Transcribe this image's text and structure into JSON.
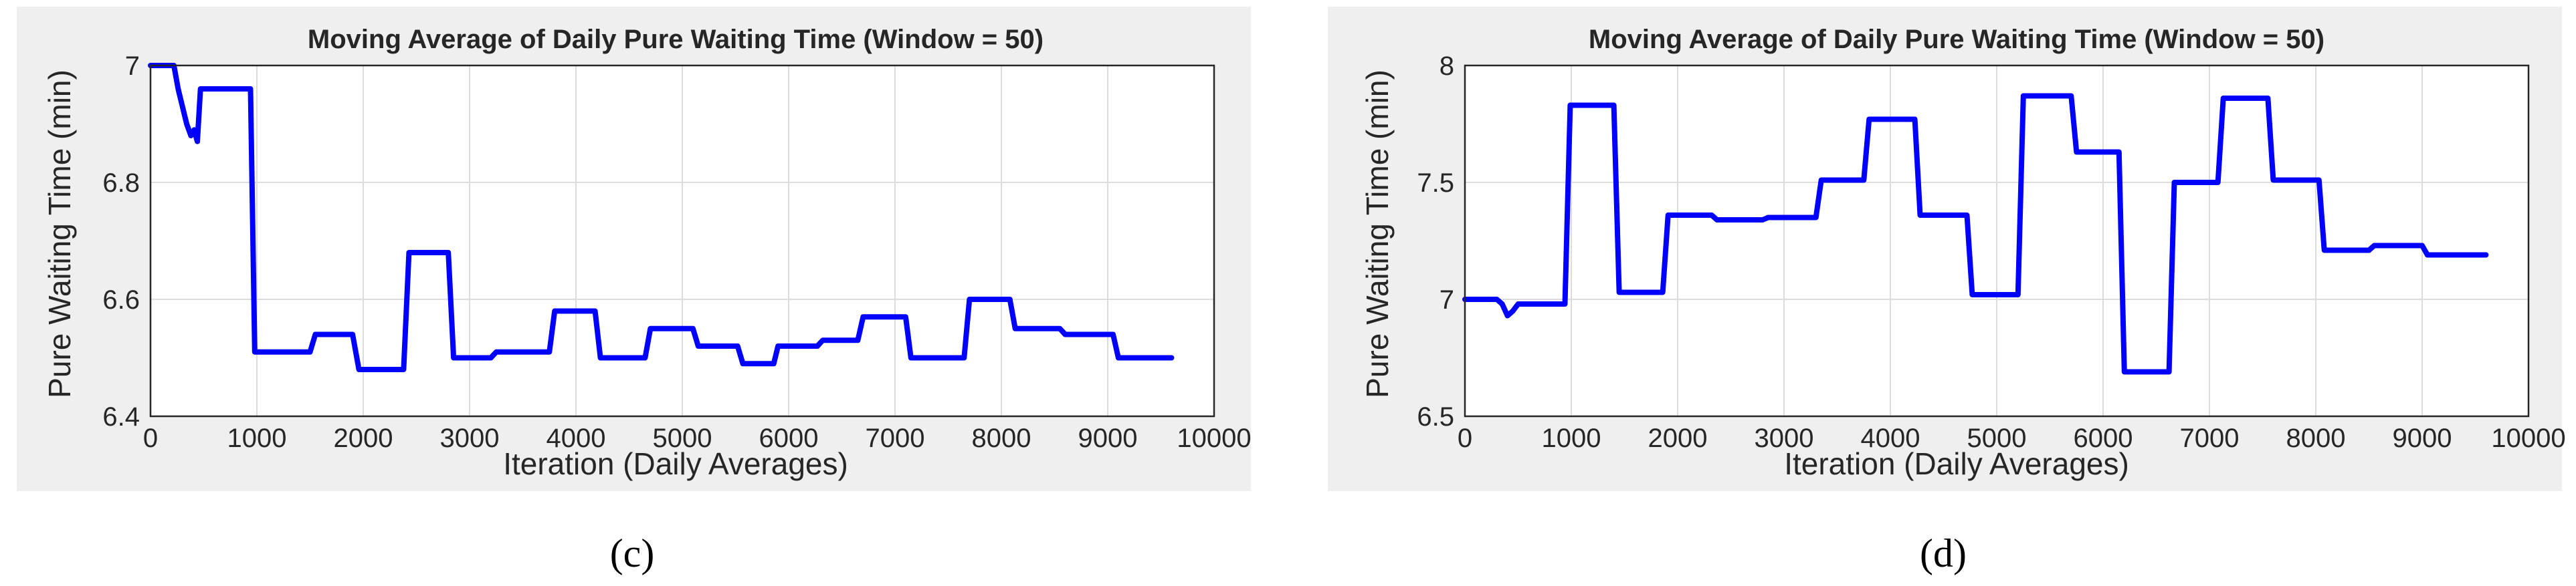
{
  "figure": {
    "panel_labels": [
      "(c)",
      "(d)"
    ]
  },
  "chart_data": [
    {
      "type": "line",
      "title": "Moving Average of Daily Pure Waiting Time (Window = 50)",
      "xlabel": "Iteration (Daily Averages)",
      "ylabel": "Pure Waiting Time (min)",
      "xlim": [
        0,
        10000
      ],
      "ylim": [
        6.4,
        7.0
      ],
      "xticks": [
        0,
        1000,
        2000,
        3000,
        4000,
        5000,
        6000,
        7000,
        8000,
        9000,
        10000
      ],
      "yticks": [
        6.4,
        6.6,
        6.8,
        7.0
      ],
      "ytick_labels": [
        "6.4",
        "6.6",
        "6.8",
        "7"
      ],
      "grid": true,
      "series": [
        {
          "color": "#0000ff",
          "x": [
            0,
            220,
            260,
            300,
            340,
            380,
            410,
            440,
            470,
            520,
            940,
            980,
            1500,
            1550,
            1900,
            1960,
            2380,
            2430,
            2800,
            2850,
            3200,
            3250,
            3750,
            3800,
            4180,
            4230,
            4650,
            4700,
            5100,
            5150,
            5520,
            5570,
            5860,
            5900,
            6270,
            6320,
            6650,
            6700,
            7100,
            7150,
            7650,
            7700,
            8080,
            8130,
            8550,
            8600,
            9050,
            9100,
            9600
          ],
          "y": [
            7.0,
            7.0,
            6.96,
            6.93,
            6.9,
            6.88,
            6.89,
            6.87,
            6.96,
            6.96,
            6.96,
            6.51,
            6.51,
            6.54,
            6.54,
            6.48,
            6.48,
            6.68,
            6.68,
            6.5,
            6.5,
            6.51,
            6.51,
            6.58,
            6.58,
            6.5,
            6.5,
            6.55,
            6.55,
            6.52,
            6.52,
            6.49,
            6.49,
            6.52,
            6.52,
            6.53,
            6.53,
            6.57,
            6.57,
            6.5,
            6.5,
            6.6,
            6.6,
            6.55,
            6.55,
            6.54,
            6.54,
            6.5,
            6.5
          ]
        }
      ]
    },
    {
      "type": "line",
      "title": "Moving Average of Daily Pure Waiting Time (Window = 50)",
      "xlabel": "Iteration (Daily Averages)",
      "ylabel": "Pure Waiting Time (min)",
      "xlim": [
        0,
        10000
      ],
      "ylim": [
        6.5,
        8.0
      ],
      "xticks": [
        0,
        1000,
        2000,
        3000,
        4000,
        5000,
        6000,
        7000,
        8000,
        9000,
        10000
      ],
      "yticks": [
        6.5,
        7.0,
        7.5,
        8.0
      ],
      "ytick_labels": [
        "6.5",
        "7",
        "7.5",
        "8"
      ],
      "grid": true,
      "series": [
        {
          "color": "#0000ff",
          "x": [
            0,
            300,
            350,
            400,
            450,
            500,
            940,
            990,
            1400,
            1450,
            1860,
            1910,
            2320,
            2370,
            2800,
            2850,
            3300,
            3350,
            3750,
            3800,
            4230,
            4280,
            4720,
            4770,
            5200,
            5250,
            5700,
            5750,
            6150,
            6200,
            6620,
            6670,
            7080,
            7130,
            7550,
            7600,
            8030,
            8080,
            8500,
            8550,
            9000,
            9050,
            9600
          ],
          "y": [
            7.0,
            7.0,
            6.98,
            6.93,
            6.95,
            6.98,
            6.98,
            7.83,
            7.83,
            7.03,
            7.03,
            7.36,
            7.36,
            7.34,
            7.34,
            7.35,
            7.35,
            7.51,
            7.51,
            7.77,
            7.77,
            7.36,
            7.36,
            7.02,
            7.02,
            7.87,
            7.87,
            7.63,
            7.63,
            6.69,
            6.69,
            7.5,
            7.5,
            7.86,
            7.86,
            7.51,
            7.51,
            7.21,
            7.21,
            7.23,
            7.23,
            7.19,
            7.19
          ]
        }
      ]
    }
  ]
}
